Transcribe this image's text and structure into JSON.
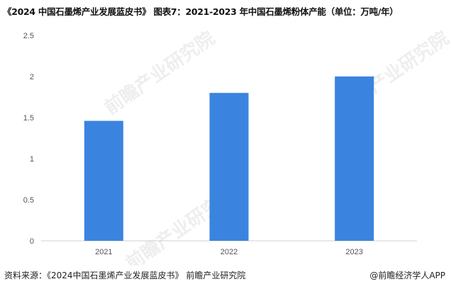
{
  "title": "《2024 中国石墨烯产业发展蓝皮书》 图表7：2021-2023 年中国石墨烯粉体产能（单位：万吨/年）",
  "footer": {
    "source": "资料来源：《2024中国石墨烯产业发展蓝皮书》 前瞻产业研究院",
    "brand": "@前瞻经济学人APP"
  },
  "watermark": "前瞻产业研究院",
  "chart_data": {
    "type": "bar",
    "categories": [
      "2021",
      "2022",
      "2023"
    ],
    "values": [
      1.46,
      1.8,
      2.0
    ],
    "ylim": [
      0,
      2.5
    ],
    "yticks": [
      "0",
      "0.5",
      "1",
      "1.5",
      "2",
      "2.5"
    ],
    "grid": false,
    "color": "#3a84e0"
  }
}
